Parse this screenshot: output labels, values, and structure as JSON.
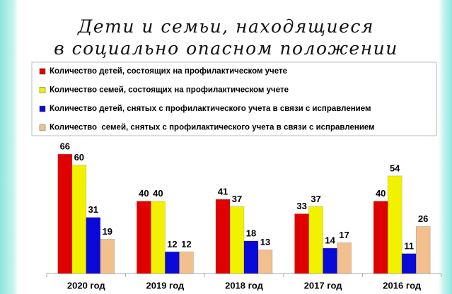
{
  "chart_data": {
    "type": "bar",
    "title": "Дети и семьи, находящиеся\nв социально опасном положении",
    "categories": [
      "2020 год",
      "2019 год",
      "2018 год",
      "2017 год",
      "2016 год"
    ],
    "series": [
      {
        "name": "Количество детей, состоящих на профилактическом учете",
        "color": "#e00000",
        "values": [
          66,
          40,
          41,
          33,
          40
        ]
      },
      {
        "name": "Количество семей, состоящих на профилактическом учете",
        "color": "#f2f200",
        "values": [
          60,
          40,
          37,
          37,
          54
        ]
      },
      {
        "name": "Количество детей, снятых с профилактического учета в связи с исправлением",
        "color": "#0a0ad8",
        "values": [
          31,
          12,
          18,
          14,
          11
        ]
      },
      {
        "name": "Количество  семей, снятых с профилактического учета в связи с исправлением",
        "color": "#f2c08f",
        "values": [
          19,
          12,
          13,
          17,
          26
        ]
      }
    ],
    "ylim": [
      0,
      70
    ]
  }
}
